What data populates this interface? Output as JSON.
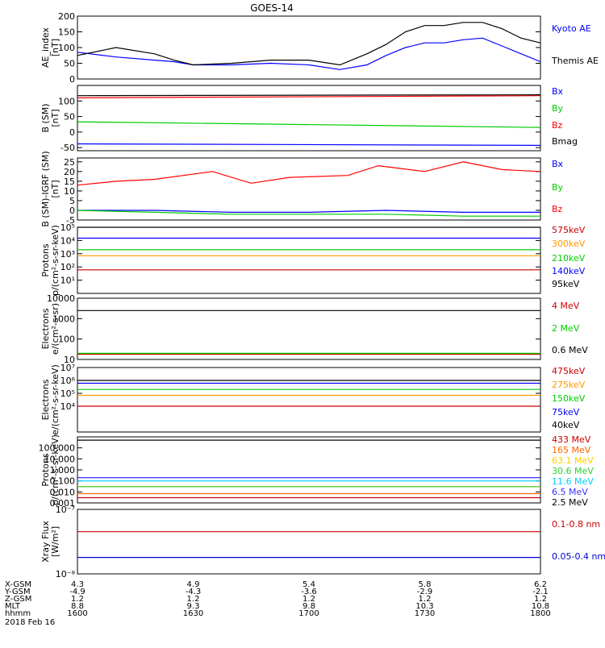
{
  "title": "GOES-14",
  "chart_data": [
    {
      "type": "line",
      "ylabel": [
        "AE_index",
        "[nT]"
      ],
      "ylim": [
        0,
        200
      ],
      "scale": "linear",
      "yticks": [
        0,
        50,
        100,
        150,
        200
      ],
      "ytick_labels": [
        "0",
        "50",
        "100",
        "150",
        "200"
      ],
      "series": [
        {
          "name": "Kyoto AE",
          "color": "#0000ff",
          "x": [
            0,
            10,
            20,
            25,
            30,
            40,
            50,
            60,
            68,
            75,
            80,
            85,
            90,
            95,
            100,
            105,
            110,
            115,
            120
          ],
          "y": [
            85,
            70,
            60,
            55,
            45,
            45,
            50,
            45,
            30,
            45,
            75,
            100,
            115,
            115,
            125,
            130,
            105,
            80,
            55
          ]
        },
        {
          "name": "Themis AE",
          "color": "#000000",
          "x": [
            0,
            10,
            20,
            25,
            30,
            40,
            50,
            60,
            68,
            75,
            80,
            85,
            90,
            95,
            100,
            105,
            110,
            115,
            120
          ],
          "y": [
            75,
            100,
            80,
            60,
            45,
            50,
            60,
            60,
            45,
            80,
            110,
            150,
            170,
            170,
            180,
            180,
            160,
            130,
            115
          ]
        }
      ]
    },
    {
      "type": "line",
      "ylabel": [
        "B (SM)",
        "[nT]"
      ],
      "ylim": [
        -60,
        150
      ],
      "scale": "linear",
      "yticks": [
        -50,
        0,
        50,
        100
      ],
      "ytick_labels": [
        "-50",
        "0",
        "50",
        "100"
      ],
      "series": [
        {
          "name": "Bx",
          "color": "#0000ff",
          "x": [
            0,
            120
          ],
          "y": [
            -38,
            -43
          ]
        },
        {
          "name": "By",
          "color": "#00cc00",
          "x": [
            0,
            120
          ],
          "y": [
            33,
            15
          ]
        },
        {
          "name": "Bz",
          "color": "#ff0000",
          "x": [
            0,
            120
          ],
          "y": [
            110,
            117
          ]
        },
        {
          "name": "Bmag",
          "color": "#000000",
          "x": [
            0,
            120
          ],
          "y": [
            117,
            120
          ]
        }
      ]
    },
    {
      "type": "line",
      "ylabel": [
        "B (SM)-IGRF (SM)",
        "[nT]"
      ],
      "ylim": [
        -5,
        27
      ],
      "scale": "linear",
      "yticks": [
        -5,
        0,
        5,
        10,
        15,
        20,
        25
      ],
      "ytick_labels": [
        "-5",
        "0",
        "5",
        "10",
        "15",
        "20",
        "25"
      ],
      "series": [
        {
          "name": "Bx",
          "color": "#0000ff",
          "x": [
            0,
            20,
            40,
            60,
            80,
            100,
            120
          ],
          "y": [
            0,
            0,
            -1,
            -1,
            0,
            -1,
            -1
          ]
        },
        {
          "name": "By",
          "color": "#00cc00",
          "x": [
            0,
            20,
            40,
            60,
            80,
            100,
            120
          ],
          "y": [
            0,
            -1,
            -2,
            -2,
            -2,
            -3,
            -3
          ]
        },
        {
          "name": "Bz",
          "color": "#ff0000",
          "x": [
            0,
            10,
            20,
            35,
            45,
            55,
            70,
            78,
            90,
            100,
            110,
            120
          ],
          "y": [
            13,
            15,
            16,
            20,
            14,
            17,
            18,
            23,
            20,
            25,
            21,
            20
          ]
        }
      ]
    },
    {
      "type": "line",
      "ylabel": [
        "Protons",
        "p/(cm²-s-sr-keV)"
      ],
      "ylim": [
        1,
        100000
      ],
      "scale": "log",
      "yticks": [
        10,
        100,
        1000,
        10000,
        100000
      ],
      "ytick_labels": [
        "10¹",
        "10²",
        "10³",
        "10⁴",
        "10⁵"
      ],
      "series": [
        {
          "name": "575keV",
          "color": "#cc0000",
          "x": [
            0,
            120
          ],
          "y": [
            60,
            60
          ]
        },
        {
          "name": "300keV",
          "color": "#ff9900",
          "x": [
            0,
            120
          ],
          "y": [
            700,
            700
          ]
        },
        {
          "name": "210keV",
          "color": "#00cc00",
          "x": [
            0,
            120
          ],
          "y": [
            2000,
            2000
          ]
        },
        {
          "name": "140keV",
          "color": "#0000ff",
          "x": [
            0,
            120
          ],
          "y": [
            15000,
            15000
          ]
        },
        {
          "name": "95keV",
          "color": "#000000",
          "x": [
            0,
            120
          ],
          "y": [
            100000,
            100000
          ]
        }
      ]
    },
    {
      "type": "line",
      "ylabel": [
        "Electrons",
        "e/(cm²-s-sr)"
      ],
      "ylim": [
        10,
        10000
      ],
      "scale": "log",
      "yticks": [
        10,
        100,
        1000,
        10000
      ],
      "ytick_labels": [
        "10",
        "100",
        "1000",
        "10000"
      ],
      "series": [
        {
          "name": "4 MeV",
          "color": "#cc0000",
          "x": [
            0,
            120
          ],
          "y": [
            18,
            18
          ]
        },
        {
          "name": "2 MeV",
          "color": "#00cc00",
          "x": [
            0,
            120
          ],
          "y": [
            20,
            20
          ]
        },
        {
          "name": "0.6 MeV",
          "color": "#000000",
          "x": [
            0,
            120
          ],
          "y": [
            2500,
            2500
          ]
        }
      ]
    },
    {
      "type": "line",
      "ylabel": [
        "Electrons",
        "e/(cm²-s-sr-keV)"
      ],
      "ylim": [
        100,
        10000000
      ],
      "scale": "log",
      "yticks": [
        10000,
        100000,
        1000000,
        10000000
      ],
      "ytick_labels": [
        "10⁴",
        "10⁵",
        "10⁶",
        "10⁷"
      ],
      "series": [
        {
          "name": "475keV",
          "color": "#cc0000",
          "x": [
            0,
            120
          ],
          "y": [
            10000,
            10000
          ]
        },
        {
          "name": "275keV",
          "color": "#ff9900",
          "x": [
            0,
            120
          ],
          "y": [
            70000,
            70000
          ]
        },
        {
          "name": "150keV",
          "color": "#00cc00",
          "x": [
            0,
            120
          ],
          "y": [
            200000,
            200000
          ]
        },
        {
          "name": "75keV",
          "color": "#0000ff",
          "x": [
            0,
            120
          ],
          "y": [
            600000,
            600000
          ]
        },
        {
          "name": "40keV",
          "color": "#000000",
          "x": [
            0,
            120
          ],
          "y": [
            1000000,
            1000000
          ]
        }
      ]
    },
    {
      "type": "line",
      "ylabel": [
        "Protons",
        "p/(cm²-s-sr-keV)"
      ],
      "ylim": [
        0.001,
        1000
      ],
      "scale": "log",
      "yticks": [
        0.001,
        0.01,
        0.1,
        1,
        10,
        100
      ],
      "ytick_labels": [
        "0.001",
        "0.010",
        "0.100",
        "1.000",
        "10.000",
        "100.000"
      ],
      "series": [
        {
          "name": "433 MeV",
          "color": "#cc0000",
          "x": [
            0,
            120
          ],
          "y": [
            0.003,
            0.003
          ]
        },
        {
          "name": "165 MeV",
          "color": "#ff6600",
          "x": [
            0,
            120
          ],
          "y": [
            0.007,
            0.007
          ]
        },
        {
          "name": "63.1 MeV",
          "color": "#ffcc00",
          "x": [
            0,
            120
          ],
          "y": [
            0.03,
            0.03
          ]
        },
        {
          "name": "30.6 MeV",
          "color": "#33cc33",
          "x": [
            0,
            120
          ],
          "y": [
            0.03,
            0.03
          ]
        },
        {
          "name": "11.6 MeV",
          "color": "#00ccff",
          "x": [
            0,
            120
          ],
          "y": [
            0.1,
            0.1
          ]
        },
        {
          "name": "6.5 MeV",
          "color": "#3333ff",
          "x": [
            0,
            120
          ],
          "y": [
            0.2,
            0.2
          ]
        },
        {
          "name": "2.5 MeV",
          "color": "#000000",
          "x": [
            0,
            120
          ],
          "y": [
            500,
            500
          ]
        }
      ]
    },
    {
      "type": "line",
      "ylabel": [
        "Xray Flux",
        "[W/m²]"
      ],
      "ylim": [
        1e-08,
        1e-07
      ],
      "scale": "log",
      "yticks": [
        1e-08,
        1e-07
      ],
      "ytick_labels": [
        "10⁻⁸",
        "10⁻⁷"
      ],
      "series": [
        {
          "name": "0.1-0.8 nm",
          "color": "#cc0000",
          "x": [
            0,
            120
          ],
          "y": [
            4.5e-08,
            4.5e-08
          ]
        },
        {
          "name": "0.05-0.4 nm",
          "color": "#0000cc",
          "x": [
            0,
            120
          ],
          "y": [
            1.8e-08,
            1.8e-08
          ]
        }
      ]
    }
  ],
  "xaxis": {
    "ticks": [
      {
        "labels": [
          "4.3",
          "-4.9",
          "1.2",
          "8.8",
          "1600"
        ]
      },
      {
        "labels": [
          "4.9",
          "-4.3",
          "1.2",
          "9.3",
          "1630"
        ]
      },
      {
        "labels": [
          "5.4",
          "-3.6",
          "1.2",
          "9.8",
          "1700"
        ]
      },
      {
        "labels": [
          "5.8",
          "-2.9",
          "1.2",
          "10.3",
          "1730"
        ]
      },
      {
        "labels": [
          "6.2",
          "-2.1",
          "1.2",
          "10.8",
          "1800"
        ]
      }
    ],
    "row_labels": [
      "X-GSM",
      "Y-GSM",
      "Z-GSM",
      "MLT",
      "hhmm"
    ],
    "date": "2018 Feb 16"
  }
}
